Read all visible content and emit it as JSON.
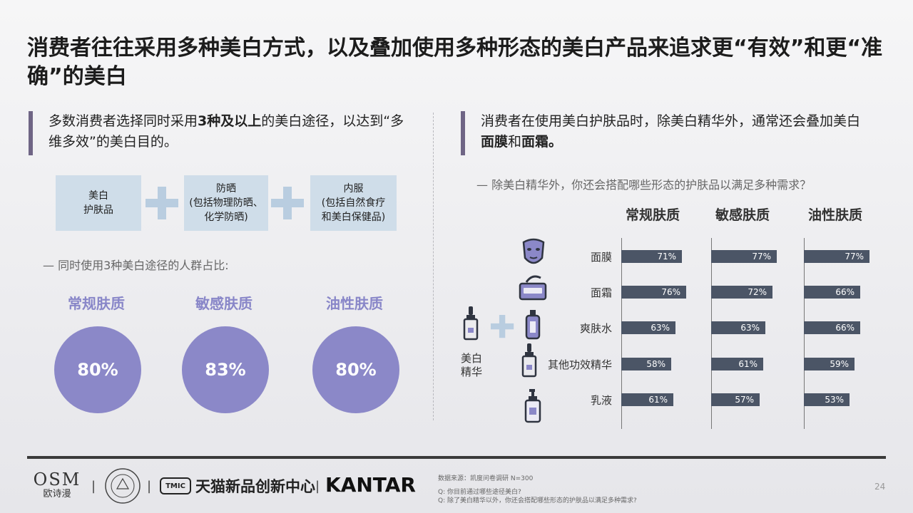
{
  "title": "消费者往往采用多种美白方式，以及叠加使用多种形态的美白产品来追求更“有效”和更“准确”的美白",
  "left": {
    "callout_pre": "多数消费者选择同时采用",
    "callout_strong": "3种及以上",
    "callout_post": "的美白途径，以达到“多维多效”的美白目的。",
    "routes": [
      {
        "line1": "美白",
        "line2": "护肤品",
        "line3": ""
      },
      {
        "line1": "防晒",
        "line2": "(包括物理防晒、",
        "line3": "化学防晒)"
      },
      {
        "line1": "内服",
        "line2": "(包括自然食疗",
        "line3": "和美白保健品)"
      }
    ],
    "subquestion": "— 同时使用3种美白途径的人群占比:",
    "skins": [
      {
        "name": "常规肤质",
        "value": "80%"
      },
      {
        "name": "敏感肤质",
        "value": "83%"
      },
      {
        "name": "油性肤质",
        "value": "80%"
      }
    ]
  },
  "right": {
    "callout_pre": "消费者在使用美白护肤品时，除美白精华外，通常还会叠加美白",
    "callout_strong1": "面膜",
    "callout_mid": "和",
    "callout_strong2": "面霜。",
    "subquestion": "— 除美白精华外，你还会搭配哪些形态的护肤品以满足多种需求？",
    "essence_label_1": "美白",
    "essence_label_2": "精华",
    "icons": [
      "mask-icon",
      "cream-jar-icon",
      "toner-bottle-icon",
      "serum-dropper-icon",
      "lotion-pump-icon"
    ],
    "accent_color": "#4b5566"
  },
  "chart_data": {
    "type": "bar",
    "categories": [
      "面膜",
      "面霜",
      "爽肤水",
      "其他功效精华",
      "乳液"
    ],
    "series": [
      {
        "name": "常规肤质",
        "values": [
          71,
          76,
          63,
          58,
          61
        ]
      },
      {
        "name": "敏感肤质",
        "values": [
          77,
          72,
          63,
          61,
          57
        ]
      },
      {
        "name": "油性肤质",
        "values": [
          77,
          66,
          66,
          59,
          53
        ]
      }
    ],
    "value_suffix": "%",
    "xlim": [
      0,
      100
    ],
    "orientation": "horizontal"
  },
  "footer": {
    "osm_big": "OSM",
    "osm_small": "欧诗漫",
    "tmall_badge": "TMIC",
    "tmall_text": "天猫新品创新中心",
    "kantar": "KANTAR",
    "source": "数据来源：凯度问卷调研 N=300",
    "q1": "Q:  你目前通过哪些途径美白?",
    "q2": "Q:  除了美白精华以外，你还会搭配哪些形态的护肤品以满足多种需求?",
    "page": "24",
    "sep": "|"
  }
}
